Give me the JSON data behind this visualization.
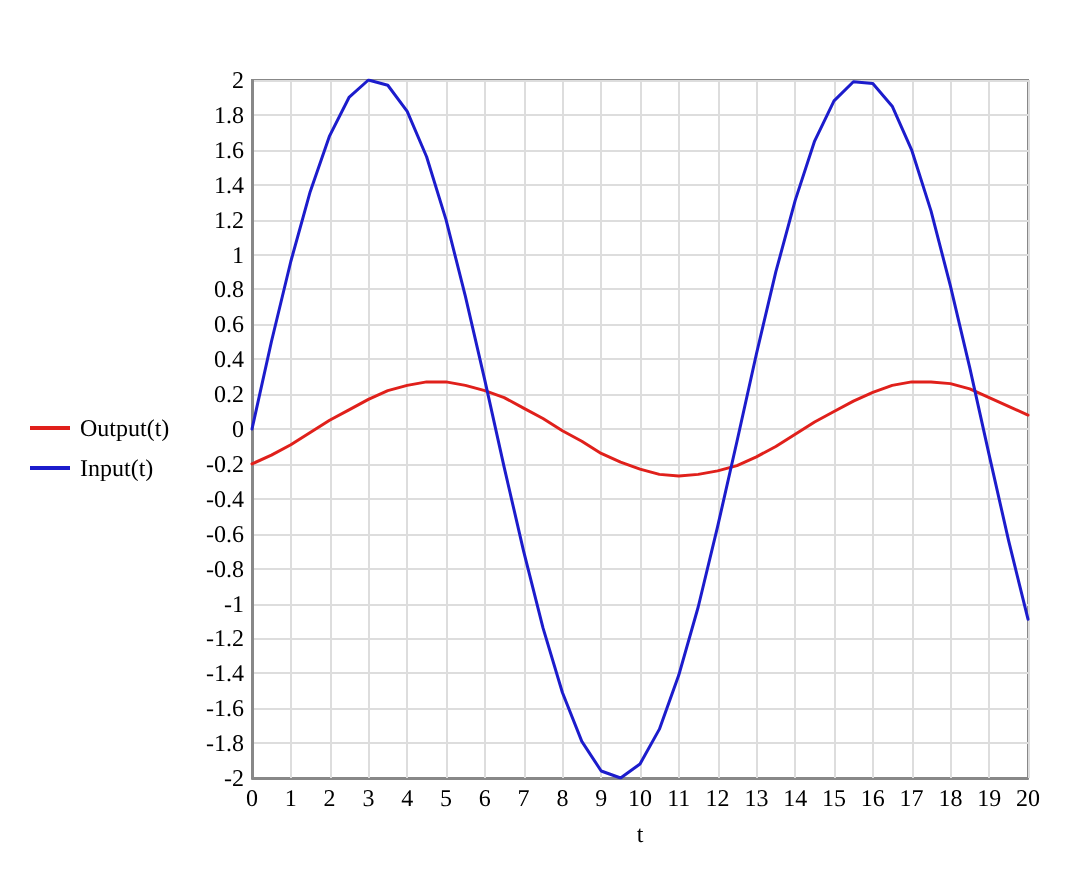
{
  "chart_data": {
    "type": "line",
    "xlabel": "t",
    "x": [
      0,
      0.5,
      1,
      1.5,
      2,
      2.5,
      3,
      3.5,
      4,
      4.5,
      5,
      5.5,
      6,
      6.5,
      7,
      7.5,
      8,
      8.5,
      9,
      9.5,
      10,
      10.5,
      11,
      11.5,
      12,
      12.5,
      13,
      13.5,
      14,
      14.5,
      15,
      15.5,
      16,
      16.5,
      17,
      17.5,
      18,
      18.5,
      19,
      19.5,
      20
    ],
    "series": [
      {
        "name": "Output(t)",
        "color": "#e0201b",
        "values": [
          -0.2,
          -0.15,
          -0.09,
          -0.02,
          0.05,
          0.11,
          0.17,
          0.22,
          0.25,
          0.27,
          0.27,
          0.25,
          0.22,
          0.18,
          0.12,
          0.06,
          -0.01,
          -0.07,
          -0.14,
          -0.19,
          -0.23,
          -0.26,
          -0.27,
          -0.26,
          -0.24,
          -0.21,
          -0.16,
          -0.1,
          -0.03,
          0.04,
          0.1,
          0.16,
          0.21,
          0.25,
          0.27,
          0.27,
          0.26,
          0.23,
          0.18,
          0.13,
          0.08
        ]
      },
      {
        "name": "Input(t)",
        "color": "#1c1ccc",
        "values": [
          0,
          0.5,
          0.96,
          1.36,
          1.68,
          1.9,
          2,
          1.97,
          1.82,
          1.56,
          1.2,
          0.76,
          0.28,
          -0.22,
          -0.7,
          -1.14,
          -1.51,
          -1.79,
          -1.96,
          -2,
          -1.92,
          -1.72,
          -1.41,
          -1.02,
          -0.56,
          -0.07,
          0.43,
          0.9,
          1.31,
          1.65,
          1.88,
          1.99,
          1.98,
          1.85,
          1.6,
          1.25,
          0.82,
          0.35,
          -0.15,
          -0.64,
          -1.09
        ]
      }
    ],
    "xlim": [
      0,
      20
    ],
    "xticks": [
      0,
      1,
      2,
      3,
      4,
      5,
      6,
      7,
      8,
      9,
      10,
      11,
      12,
      13,
      14,
      15,
      16,
      17,
      18,
      19,
      20
    ],
    "ylim": [
      -2,
      2
    ],
    "yticks": [
      -2,
      -1.8,
      -1.6,
      -1.4,
      -1.2,
      -1,
      -0.8,
      -0.6,
      -0.4,
      -0.2,
      0,
      0.2,
      0.4,
      0.6,
      0.8,
      1,
      1.2,
      1.4,
      1.6,
      1.8,
      2
    ],
    "grid": true,
    "legend": "left",
    "marker": "none",
    "line_style": "solid"
  }
}
